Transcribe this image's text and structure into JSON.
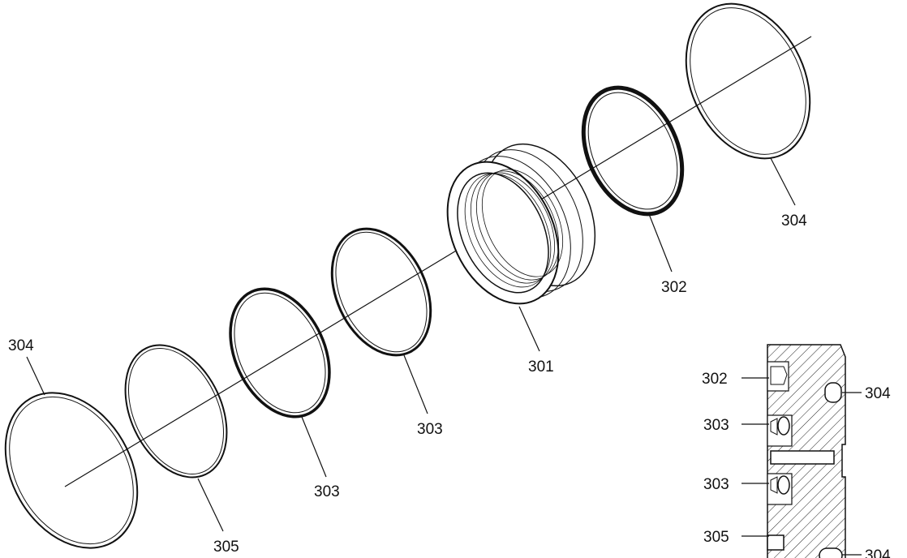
{
  "exploded_view": {
    "labels": {
      "left_o_ring": "304",
      "flat_ring": "305",
      "seal_ring_a": "303",
      "seal_ring_b": "303",
      "housing": "301",
      "backup_ring": "302",
      "right_o_ring": "304"
    }
  },
  "section_view": {
    "labels": {
      "upper_left": "302",
      "upper_right": "304",
      "mid_upper": "303",
      "mid_lower": "303",
      "lower_left": "305",
      "lower_right": "304"
    }
  },
  "colors": {
    "line": "#111111",
    "background": "#ffffff"
  }
}
